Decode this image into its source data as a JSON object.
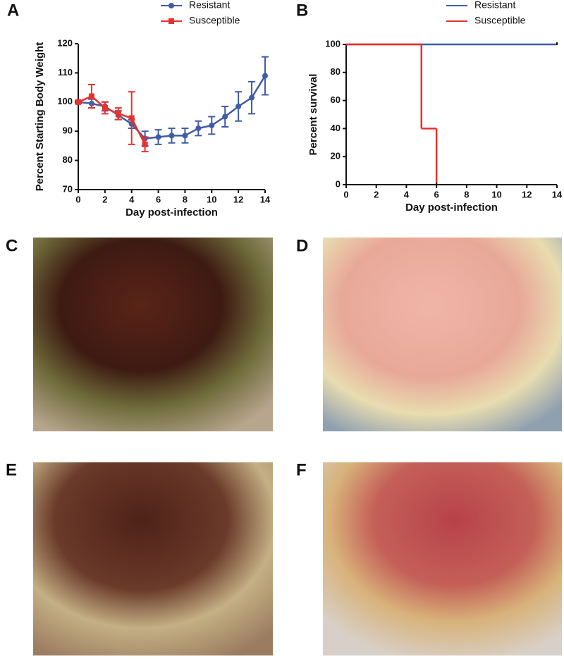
{
  "chart_data": [
    {
      "type": "line",
      "panel": "A",
      "xlabel": "Day post-infection",
      "ylabel": "Percent Starting Body Weight",
      "xlim": [
        0,
        14
      ],
      "xticks": [
        0,
        2,
        4,
        6,
        8,
        10,
        12,
        14
      ],
      "ylim": [
        70,
        120
      ],
      "yticks": [
        70,
        80,
        90,
        100,
        110,
        120
      ],
      "legend": "top",
      "series": [
        {
          "name": "Resistant",
          "color": "#3f5ca8",
          "x": [
            0,
            1,
            2,
            3,
            4,
            5,
            6,
            7,
            8,
            9,
            10,
            11,
            12,
            13,
            14
          ],
          "values": [
            100,
            99.5,
            98.5,
            95.5,
            92.5,
            87.5,
            88,
            88.5,
            88.5,
            91,
            92,
            95,
            98.5,
            101.5,
            109
          ],
          "errors": [
            0.5,
            1.5,
            1.5,
            1.5,
            1.5,
            2.5,
            2.5,
            2.5,
            2.5,
            2.5,
            3,
            3.5,
            5,
            5.5,
            6.5
          ]
        },
        {
          "name": "Susceptible",
          "color": "#e8312a",
          "x": [
            0,
            1,
            2,
            3,
            4,
            5
          ],
          "values": [
            100,
            102,
            98,
            96,
            94.5,
            85.5
          ],
          "errors": [
            0.5,
            4,
            2,
            2,
            9,
            2.5
          ]
        }
      ]
    },
    {
      "type": "step",
      "panel": "B",
      "xlabel": "Day post-infection",
      "ylabel": "Percent survival",
      "xlim": [
        0,
        14
      ],
      "xticks": [
        0,
        2,
        4,
        6,
        8,
        10,
        12,
        14
      ],
      "ylim": [
        0,
        100
      ],
      "yticks": [
        0,
        20,
        40,
        60,
        80,
        100
      ],
      "legend": "top",
      "series": [
        {
          "name": "Resistant",
          "color": "#3f5ca8",
          "x": [
            0,
            14
          ],
          "values": [
            100,
            100
          ]
        },
        {
          "name": "Susceptible",
          "color": "#e8312a",
          "x": [
            0,
            5,
            6
          ],
          "values": [
            100,
            40,
            0
          ]
        }
      ]
    }
  ],
  "photos": [
    {
      "panel": "C"
    },
    {
      "panel": "D"
    },
    {
      "panel": "E"
    },
    {
      "panel": "F"
    }
  ]
}
